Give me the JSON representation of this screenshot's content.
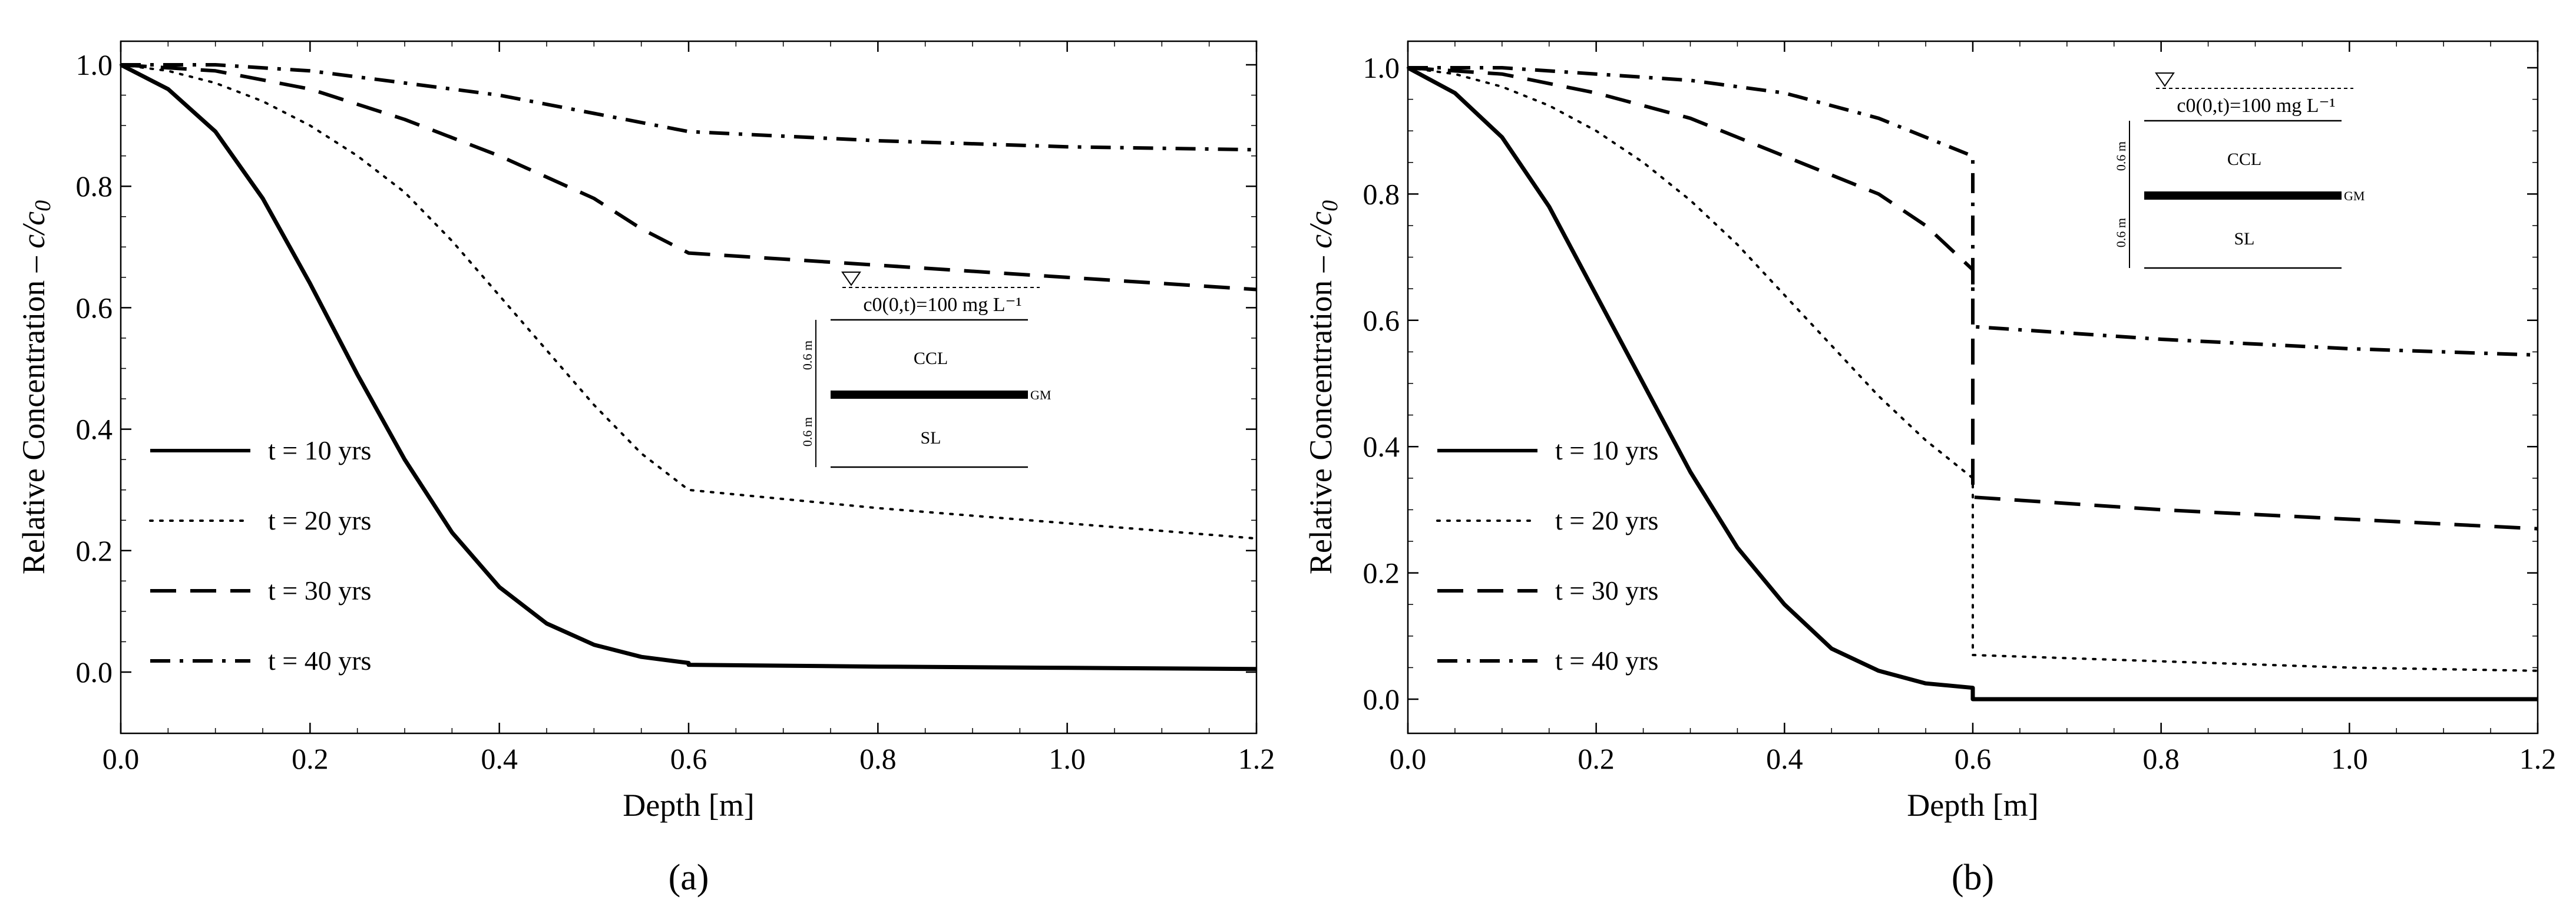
{
  "chart_data": [
    {
      "type": "line",
      "panel_label": "(a)",
      "xlabel": "Depth [m]",
      "ylabel_main": "Relative Concentration – ",
      "ylabel_var": "c/c",
      "ylabel_sub": "0",
      "xlim": [
        0,
        1.2
      ],
      "ylim": [
        -0.1,
        1.05
      ],
      "xticks": [
        0.0,
        0.2,
        0.4,
        0.6,
        0.8,
        1.0,
        1.2
      ],
      "xtick_labels": [
        "0.0",
        "0.2",
        "0.4",
        "0.6",
        "0.8",
        "1.0",
        "1.2"
      ],
      "yticks": [
        0.0,
        0.2,
        0.4,
        0.6,
        0.8,
        1.0
      ],
      "ytick_labels": [
        "0.0",
        "0.2",
        "0.4",
        "0.6",
        "0.8",
        "1.0"
      ],
      "legend_position": "left",
      "series": [
        {
          "name": "t = 10 yrs",
          "style": "solid",
          "x": [
            0,
            0.05,
            0.1,
            0.15,
            0.2,
            0.25,
            0.3,
            0.35,
            0.4,
            0.45,
            0.5,
            0.55,
            0.6,
            0.6,
            0.8,
            1.0,
            1.2
          ],
          "y": [
            1.0,
            0.96,
            0.89,
            0.78,
            0.64,
            0.49,
            0.35,
            0.23,
            0.14,
            0.08,
            0.045,
            0.025,
            0.015,
            0.012,
            0.009,
            0.007,
            0.005
          ]
        },
        {
          "name": "t = 20 yrs",
          "style": "dotted",
          "x": [
            0,
            0.05,
            0.1,
            0.15,
            0.2,
            0.25,
            0.3,
            0.35,
            0.4,
            0.45,
            0.5,
            0.55,
            0.6,
            0.6,
            0.8,
            1.0,
            1.2
          ],
          "y": [
            1.0,
            0.99,
            0.97,
            0.94,
            0.9,
            0.85,
            0.79,
            0.71,
            0.62,
            0.53,
            0.44,
            0.36,
            0.3,
            0.3,
            0.27,
            0.245,
            0.22
          ]
        },
        {
          "name": "t = 30 yrs",
          "style": "dashed",
          "x": [
            0,
            0.1,
            0.2,
            0.3,
            0.4,
            0.5,
            0.55,
            0.6,
            0.6,
            0.8,
            1.0,
            1.2
          ],
          "y": [
            1.0,
            0.99,
            0.96,
            0.91,
            0.85,
            0.78,
            0.73,
            0.69,
            0.69,
            0.67,
            0.65,
            0.63
          ]
        },
        {
          "name": "t = 40 yrs",
          "style": "dashdot",
          "x": [
            0,
            0.1,
            0.2,
            0.3,
            0.4,
            0.5,
            0.6,
            0.6,
            0.8,
            1.0,
            1.2
          ],
          "y": [
            1.0,
            1.0,
            0.99,
            0.97,
            0.95,
            0.92,
            0.89,
            0.89,
            0.875,
            0.865,
            0.86
          ]
        }
      ],
      "inset": {
        "boundary": "c0(0,t)=100 mg L⁻¹",
        "layer_top": "CCL",
        "layer_bottom": "SL",
        "membrane": "GM",
        "dim_top": "0.6 m",
        "dim_bottom": "0.6 m"
      }
    },
    {
      "type": "line",
      "panel_label": "(b)",
      "xlabel": "Depth [m]",
      "ylabel_main": "Relative Concentration – ",
      "ylabel_var": "c/c",
      "ylabel_sub": "0",
      "xlim": [
        0,
        1.2
      ],
      "ylim": [
        -0.05,
        1.05
      ],
      "xticks": [
        0.0,
        0.2,
        0.4,
        0.6,
        0.8,
        1.0,
        1.2
      ],
      "xtick_labels": [
        "0.0",
        "0.2",
        "0.4",
        "0.6",
        "0.8",
        "1.0",
        "1.2"
      ],
      "yticks": [
        0.0,
        0.2,
        0.4,
        0.6,
        0.8,
        1.0
      ],
      "ytick_labels": [
        "0.0",
        "0.2",
        "0.4",
        "0.6",
        "0.8",
        "1.0"
      ],
      "legend_position": "left",
      "series": [
        {
          "name": "t = 10 yrs",
          "style": "solid",
          "x": [
            0,
            0.05,
            0.1,
            0.15,
            0.2,
            0.25,
            0.3,
            0.35,
            0.4,
            0.45,
            0.5,
            0.55,
            0.6,
            0.6,
            0.8,
            1.0,
            1.2
          ],
          "y": [
            1.0,
            0.96,
            0.89,
            0.78,
            0.64,
            0.5,
            0.36,
            0.24,
            0.15,
            0.08,
            0.045,
            0.025,
            0.018,
            0.0,
            0.0,
            0.0,
            0.0
          ]
        },
        {
          "name": "t = 20 yrs",
          "style": "dotted",
          "x": [
            0,
            0.05,
            0.1,
            0.15,
            0.2,
            0.25,
            0.3,
            0.35,
            0.4,
            0.45,
            0.5,
            0.55,
            0.6,
            0.6,
            0.8,
            1.0,
            1.2
          ],
          "y": [
            1.0,
            0.99,
            0.97,
            0.94,
            0.9,
            0.85,
            0.79,
            0.72,
            0.64,
            0.56,
            0.48,
            0.41,
            0.35,
            0.07,
            0.06,
            0.05,
            0.045
          ]
        },
        {
          "name": "t = 30 yrs",
          "style": "dashed",
          "x": [
            0,
            0.1,
            0.2,
            0.3,
            0.4,
            0.5,
            0.55,
            0.6,
            0.6,
            0.8,
            1.0,
            1.2
          ],
          "y": [
            1.0,
            0.99,
            0.96,
            0.92,
            0.86,
            0.8,
            0.75,
            0.68,
            0.32,
            0.3,
            0.285,
            0.27
          ]
        },
        {
          "name": "t = 40 yrs",
          "style": "dashdot",
          "x": [
            0,
            0.1,
            0.2,
            0.3,
            0.4,
            0.5,
            0.6,
            0.6,
            0.8,
            1.0,
            1.2
          ],
          "y": [
            1.0,
            1.0,
            0.99,
            0.98,
            0.96,
            0.92,
            0.86,
            0.59,
            0.57,
            0.555,
            0.545
          ]
        }
      ],
      "inset": {
        "boundary": "c0(0,t)=100 mg L⁻¹",
        "layer_top": "CCL",
        "layer_bottom": "SL",
        "membrane": "GM",
        "dim_top": "0.6 m",
        "dim_bottom": "0.6 m"
      }
    }
  ]
}
